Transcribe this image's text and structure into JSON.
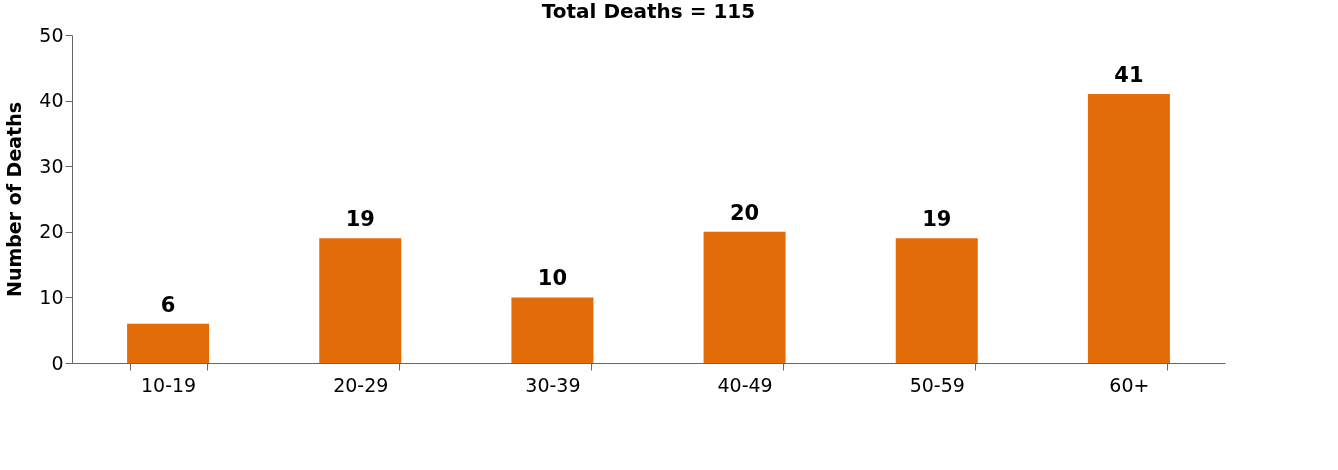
{
  "chart_data": {
    "type": "bar",
    "title": "Total Deaths = 115",
    "ylabel": "Number of Deaths",
    "categories": [
      "10-19",
      "20-29",
      "30-39",
      "40-49",
      "50-59",
      "60+"
    ],
    "values": [
      6,
      19,
      10,
      20,
      19,
      41
    ],
    "color": "#e36c0a",
    "ylim": [
      0,
      50
    ],
    "yticks": [
      0,
      10,
      20,
      30,
      40,
      50
    ],
    "grid": false,
    "data_labels": true
  }
}
